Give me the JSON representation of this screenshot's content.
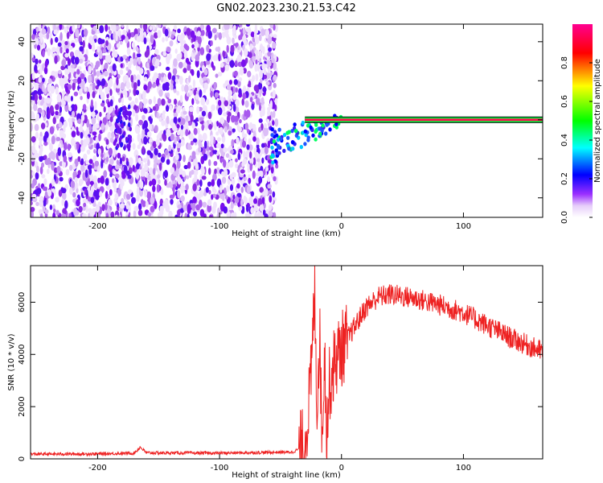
{
  "title": "GN02.2023.230.21.53.C42",
  "chart_data": [
    {
      "type": "heatmap",
      "xlabel": "Height of straight line (km)",
      "ylabel": "Frequency (Hz)",
      "xlim": [
        -255,
        165
      ],
      "ylim": [
        -50,
        49
      ],
      "x_ticks": [
        -200,
        -100,
        0,
        100
      ],
      "y_ticks": [
        -40,
        -20,
        0,
        20,
        40
      ],
      "noise_region_x": [
        -255,
        -53
      ],
      "transition_region_x": [
        -60,
        0
      ],
      "carrier_line_x": [
        -30,
        165
      ],
      "carrier_frequency": 0,
      "colorbar": {
        "label": "Normalized spectral amplitude",
        "range": [
          0.0,
          1.0
        ],
        "ticks": [
          0.0,
          0.2,
          0.4,
          0.6,
          0.8
        ],
        "colormap": [
          "#ffffff",
          "#9b30ff",
          "#0000ff",
          "#00ffff",
          "#00ff00",
          "#ffff00",
          "#ff0000",
          "#ff00aa"
        ]
      }
    },
    {
      "type": "line",
      "xlabel": "Height of straight line (km)",
      "ylabel": "SNR (10 * v/v)",
      "xlim": [
        -255,
        165
      ],
      "ylim": [
        0,
        7400
      ],
      "x_ticks": [
        -200,
        -100,
        0,
        100
      ],
      "y_ticks": [
        0,
        2000,
        4000,
        6000
      ],
      "color": "#ee2222",
      "series": [
        {
          "x": [
            -255,
            -200,
            -170,
            -165,
            -160,
            -100,
            -40,
            -30,
            -25,
            -22,
            -20,
            -18,
            -16,
            -14,
            -12,
            -10,
            -5,
            0,
            10,
            20,
            30,
            40,
            60,
            80,
            100,
            120,
            140,
            165
          ],
          "values": [
            180,
            190,
            220,
            450,
            230,
            220,
            260,
            500,
            3000,
            6500,
            1800,
            5000,
            700,
            4200,
            1100,
            2800,
            3800,
            4200,
            5000,
            5800,
            6200,
            6300,
            6150,
            5900,
            5600,
            5100,
            4600,
            4100
          ]
        }
      ]
    }
  ]
}
